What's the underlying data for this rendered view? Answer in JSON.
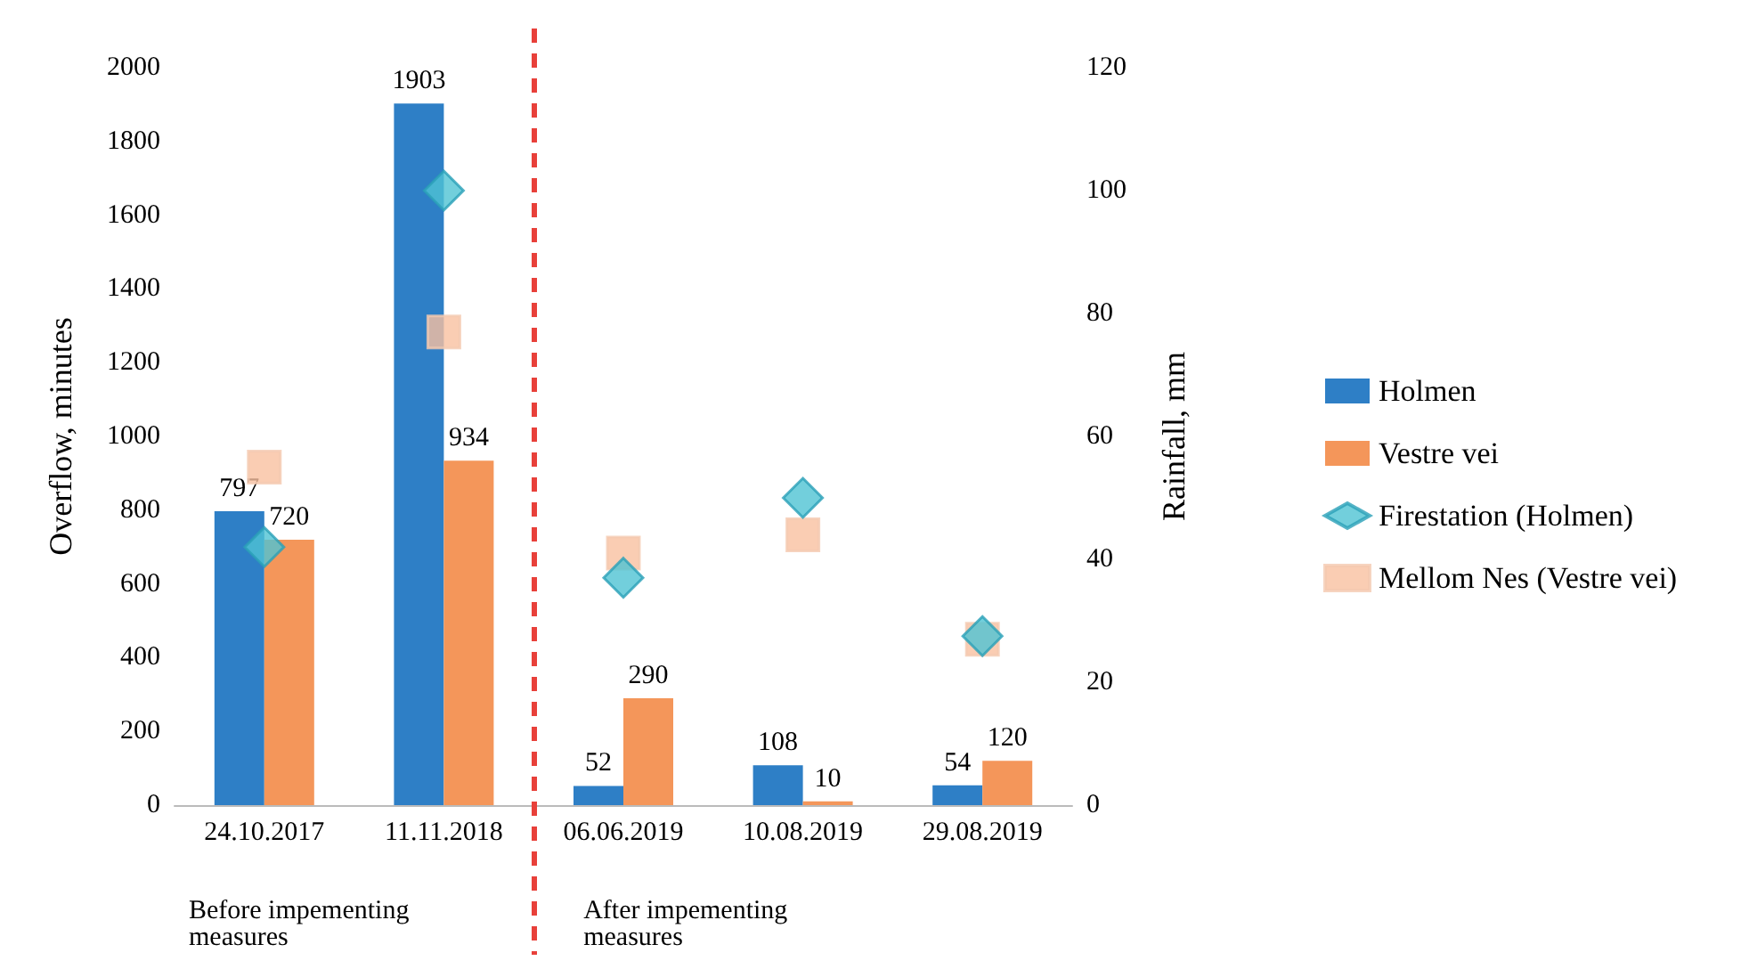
{
  "chart_data": {
    "type": "bar",
    "categories": [
      "24.10.2017",
      "11.11.2018",
      "06.06.2019",
      "10.08.2019",
      "29.08.2019"
    ],
    "ylabel": "Overflow, minutes",
    "y2label": "Rainfall, mm",
    "ylim": [
      0,
      2000
    ],
    "yticks": [
      0,
      200,
      400,
      600,
      800,
      1000,
      1200,
      1400,
      1600,
      1800,
      2000
    ],
    "y2lim": [
      0,
      120
    ],
    "y2ticks": [
      0,
      20,
      40,
      60,
      80,
      100,
      120
    ],
    "series": [
      {
        "name": "Holmen",
        "color": "#2e7fc6",
        "values": [
          797,
          1903,
          52,
          108,
          54
        ],
        "data_labels": true
      },
      {
        "name": "Vestre vei",
        "color": "#f4965a",
        "values": [
          720,
          934,
          290,
          10,
          120
        ],
        "data_labels": true
      },
      {
        "name": "Firestation (Holmen)",
        "type": "scatter",
        "axis": "y2",
        "marker": "diamond",
        "color": "#4fc3d3",
        "values": [
          42,
          100,
          37,
          50,
          27.5
        ]
      },
      {
        "name": "Mellom Nes (Vestre vei)",
        "type": "scatter",
        "axis": "y2",
        "marker": "square",
        "color": "#f9c0a0",
        "values": [
          55,
          77,
          41,
          44,
          27
        ]
      }
    ],
    "annotations": [
      "Before impementing measures",
      "After impementing measures"
    ],
    "legend": "right",
    "grid": false
  }
}
